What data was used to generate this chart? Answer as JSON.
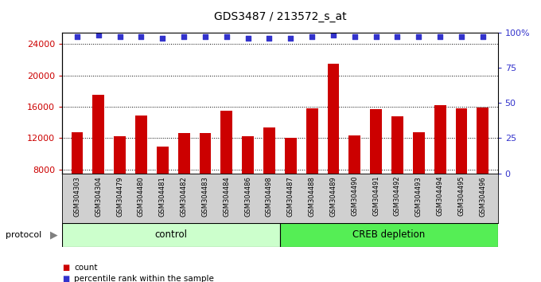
{
  "title": "GDS3487 / 213572_s_at",
  "samples": [
    "GSM304303",
    "GSM304304",
    "GSM304479",
    "GSM304480",
    "GSM304481",
    "GSM304482",
    "GSM304483",
    "GSM304484",
    "GSM304486",
    "GSM304498",
    "GSM304487",
    "GSM304488",
    "GSM304489",
    "GSM304490",
    "GSM304491",
    "GSM304492",
    "GSM304493",
    "GSM304494",
    "GSM304495",
    "GSM304496"
  ],
  "bar_values": [
    12800,
    17500,
    12200,
    14900,
    10900,
    12700,
    12700,
    15500,
    12200,
    13400,
    12000,
    15800,
    21500,
    12400,
    15700,
    14800,
    12800,
    16200,
    15800,
    15900
  ],
  "percentile_values": [
    97,
    98,
    97,
    97,
    96,
    97,
    97,
    97,
    96,
    96,
    96,
    97,
    98,
    97,
    97,
    97,
    97,
    97,
    97,
    97
  ],
  "bar_color": "#cc0000",
  "dot_color": "#3333cc",
  "ylim_left": [
    7500,
    25500
  ],
  "ylim_right": [
    0,
    100
  ],
  "yticks_left": [
    8000,
    12000,
    16000,
    20000,
    24000
  ],
  "ytick_labels_left": [
    "8000",
    "12000",
    "16000",
    "20000",
    "24000"
  ],
  "yticks_right": [
    0,
    25,
    50,
    75,
    100
  ],
  "ytick_labels_right": [
    "0",
    "25",
    "50",
    "75",
    "100%"
  ],
  "n_control": 10,
  "n_creb": 10,
  "control_label": "control",
  "creb_label": "CREB depletion",
  "protocol_label": "protocol",
  "legend_count": "count",
  "legend_percentile": "percentile rank within the sample",
  "tick_bg_color": "#d0d0d0",
  "control_color": "#ccffcc",
  "creb_color": "#55ee55",
  "plot_bg": "#ffffff",
  "bar_width": 0.55
}
